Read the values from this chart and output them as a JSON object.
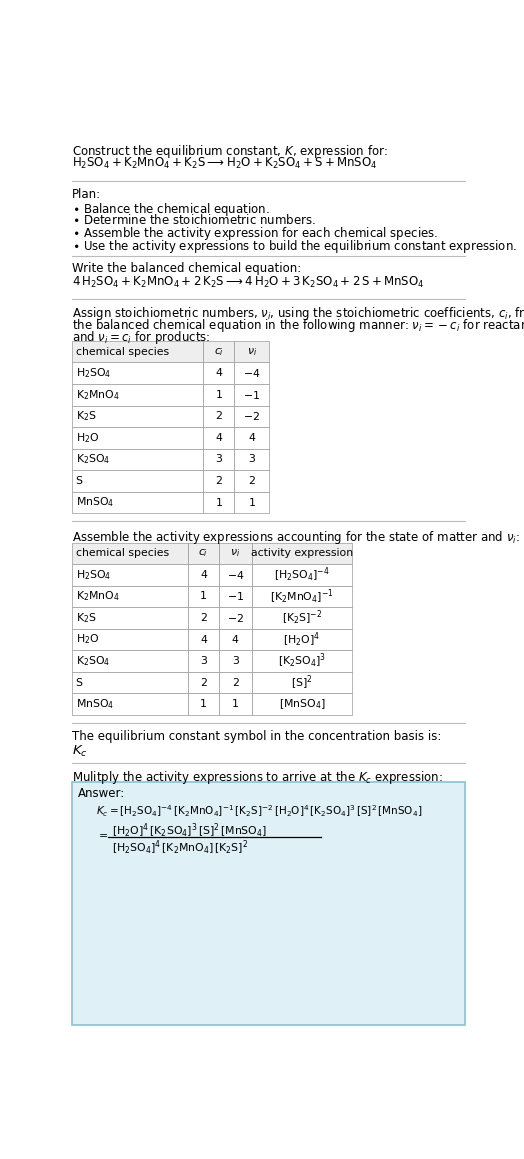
{
  "title_line1": "Construct the equilibrium constant, $K$, expression for:",
  "title_line2": "$\\mathrm{H_2SO_4 + K_2MnO_4 + K_2S \\longrightarrow H_2O + K_2SO_4 + S + MnSO_4}$",
  "plan_header": "Plan:",
  "plan_items": [
    "$\\bullet$ Balance the chemical equation.",
    "$\\bullet$ Determine the stoichiometric numbers.",
    "$\\bullet$ Assemble the activity expression for each chemical species.",
    "$\\bullet$ Use the activity expressions to build the equilibrium constant expression."
  ],
  "balanced_header": "Write the balanced chemical equation:",
  "balanced_eq": "$4\\,\\mathrm{H_2SO_4 + K_2MnO_4 + 2\\,K_2S \\longrightarrow 4\\,H_2O + 3\\,K_2SO_4 + 2\\,S + MnSO_4}$",
  "stoich_header_lines": [
    "Assign stoichiometric numbers, $\\nu_i$, using the stoichiometric coefficients, $c_i$, from",
    "the balanced chemical equation in the following manner: $\\nu_i = -c_i$ for reactants",
    "and $\\nu_i = c_i$ for products:"
  ],
  "table1_headers": [
    "chemical species",
    "$c_i$",
    "$\\nu_i$"
  ],
  "table1_rows": [
    [
      "$\\mathrm{H_2SO_4}$",
      "4",
      "$-4$"
    ],
    [
      "$\\mathrm{K_2MnO_4}$",
      "1",
      "$-1$"
    ],
    [
      "$\\mathrm{K_2S}$",
      "2",
      "$-2$"
    ],
    [
      "$\\mathrm{H_2O}$",
      "4",
      "4"
    ],
    [
      "$\\mathrm{K_2SO_4}$",
      "3",
      "3"
    ],
    [
      "S",
      "2",
      "2"
    ],
    [
      "$\\mathrm{MnSO_4}$",
      "1",
      "1"
    ]
  ],
  "activity_header": "Assemble the activity expressions accounting for the state of matter and $\\nu_i$:",
  "table2_headers": [
    "chemical species",
    "$c_i$",
    "$\\nu_i$",
    "activity expression"
  ],
  "table2_rows": [
    [
      "$\\mathrm{H_2SO_4}$",
      "4",
      "$-4$",
      "$[\\mathrm{H_2SO_4}]^{-4}$"
    ],
    [
      "$\\mathrm{K_2MnO_4}$",
      "1",
      "$-1$",
      "$[\\mathrm{K_2MnO_4}]^{-1}$"
    ],
    [
      "$\\mathrm{K_2S}$",
      "2",
      "$-2$",
      "$[\\mathrm{K_2S}]^{-2}$"
    ],
    [
      "$\\mathrm{H_2O}$",
      "4",
      "4",
      "$[\\mathrm{H_2O}]^4$"
    ],
    [
      "$\\mathrm{K_2SO_4}$",
      "3",
      "3",
      "$[\\mathrm{K_2SO_4}]^3$"
    ],
    [
      "S",
      "2",
      "2",
      "$[\\mathrm{S}]^2$"
    ],
    [
      "$\\mathrm{MnSO_4}$",
      "1",
      "1",
      "$[\\mathrm{MnSO_4}]$"
    ]
  ],
  "kc_header": "The equilibrium constant symbol in the concentration basis is:",
  "kc_symbol": "$K_c$",
  "multiply_header": "Mulitply the activity expressions to arrive at the $K_c$ expression:",
  "answer_label": "Answer:",
  "answer_line1": "$K_c = [\\mathrm{H_2SO_4}]^{-4}\\,[\\mathrm{K_2MnO_4}]^{-1}\\,[\\mathrm{K_2S}]^{-2}\\,[\\mathrm{H_2O}]^4\\,[\\mathrm{K_2SO_4}]^3\\,[\\mathrm{S}]^2\\,[\\mathrm{MnSO_4}]$",
  "answer_eq_sign": "$=$",
  "answer_line2_num": "$[\\mathrm{H_2O}]^4\\,[\\mathrm{K_2SO_4}]^3\\,[\\mathrm{S}]^2\\,[\\mathrm{MnSO_4}]$",
  "answer_line2_den": "$[\\mathrm{H_2SO_4}]^4\\,[\\mathrm{K_2MnO_4}]\\,[\\mathrm{K_2S}]^2$",
  "bg_color": "#ffffff",
  "answer_bg": "#dff0f7",
  "answer_border": "#90bfd0",
  "text_color": "#000000",
  "separator_color": "#bbbbbb",
  "table_header_bg": "#eeeeee",
  "table_cell_bg": "#ffffff",
  "table_border": "#999999"
}
